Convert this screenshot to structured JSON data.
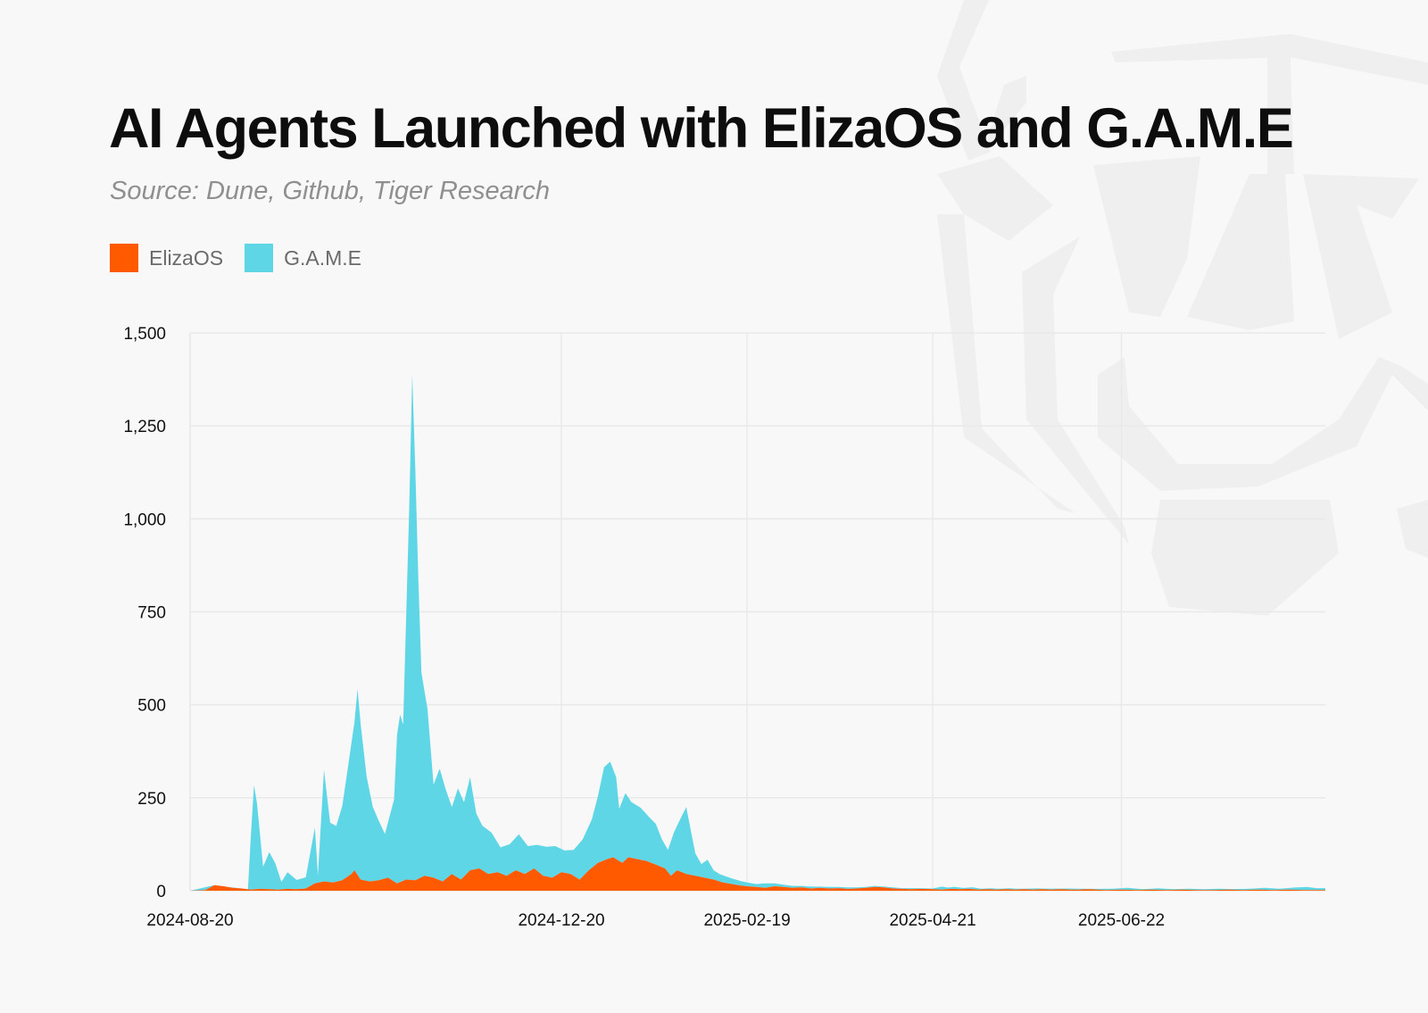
{
  "title": "AI Agents Launched with ElizaOS and G.A.M.E",
  "subtitle": "Source: Dune, Github, Tiger Research",
  "colors": {
    "background": "#f8f8f8",
    "elizaos": "#ff5a00",
    "game": "#5fd6e6",
    "grid": "#e9e9e9",
    "watermark": "#efefef"
  },
  "watermark_icon": "tiger-logo-icon",
  "chart_data": {
    "type": "area",
    "stacked": true,
    "x_start": "2024-08-20",
    "x_end": "2025-08-28",
    "xticks": [
      "2024-08-20",
      "2024-12-20",
      "2025-02-19",
      "2025-04-21",
      "2025-06-22"
    ],
    "yticks": [
      "0",
      "250",
      "500",
      "750",
      "1,000",
      "1,250",
      "1,500"
    ],
    "ylim": [
      0,
      1500
    ],
    "grid": true,
    "legend_position": "top-left",
    "series": [
      {
        "name": "ElizaOS",
        "color": "#ff5a00",
        "points": [
          [
            "2024-08-20",
            0
          ],
          [
            "2024-08-25",
            2
          ],
          [
            "2024-08-28",
            15
          ],
          [
            "2024-08-31",
            12
          ],
          [
            "2024-09-03",
            8
          ],
          [
            "2024-09-06",
            6
          ],
          [
            "2024-09-09",
            3
          ],
          [
            "2024-09-12",
            5
          ],
          [
            "2024-09-15",
            4
          ],
          [
            "2024-09-18",
            3
          ],
          [
            "2024-09-21",
            5
          ],
          [
            "2024-09-24",
            4
          ],
          [
            "2024-09-27",
            6
          ],
          [
            "2024-09-30",
            20
          ],
          [
            "2024-10-03",
            25
          ],
          [
            "2024-10-06",
            22
          ],
          [
            "2024-10-09",
            28
          ],
          [
            "2024-10-12",
            45
          ],
          [
            "2024-10-13",
            55
          ],
          [
            "2024-10-15",
            30
          ],
          [
            "2024-10-18",
            25
          ],
          [
            "2024-10-21",
            28
          ],
          [
            "2024-10-24",
            35
          ],
          [
            "2024-10-27",
            20
          ],
          [
            "2024-10-30",
            30
          ],
          [
            "2024-11-02",
            28
          ],
          [
            "2024-11-05",
            40
          ],
          [
            "2024-11-08",
            35
          ],
          [
            "2024-11-11",
            25
          ],
          [
            "2024-11-14",
            45
          ],
          [
            "2024-11-17",
            30
          ],
          [
            "2024-11-20",
            55
          ],
          [
            "2024-11-23",
            60
          ],
          [
            "2024-11-26",
            45
          ],
          [
            "2024-11-29",
            50
          ],
          [
            "2024-12-02",
            40
          ],
          [
            "2024-12-05",
            55
          ],
          [
            "2024-12-08",
            45
          ],
          [
            "2024-12-11",
            60
          ],
          [
            "2024-12-14",
            40
          ],
          [
            "2024-12-17",
            35
          ],
          [
            "2024-12-20",
            50
          ],
          [
            "2024-12-23",
            45
          ],
          [
            "2024-12-26",
            30
          ],
          [
            "2024-12-29",
            55
          ],
          [
            "2025-01-01",
            75
          ],
          [
            "2025-01-04",
            85
          ],
          [
            "2025-01-06",
            90
          ],
          [
            "2025-01-09",
            75
          ],
          [
            "2025-01-11",
            90
          ],
          [
            "2025-01-14",
            85
          ],
          [
            "2025-01-17",
            80
          ],
          [
            "2025-01-20",
            70
          ],
          [
            "2025-01-23",
            60
          ],
          [
            "2025-01-25",
            40
          ],
          [
            "2025-01-27",
            55
          ],
          [
            "2025-01-30",
            45
          ],
          [
            "2025-02-02",
            40
          ],
          [
            "2025-02-05",
            35
          ],
          [
            "2025-02-08",
            30
          ],
          [
            "2025-02-11",
            22
          ],
          [
            "2025-02-14",
            18
          ],
          [
            "2025-02-17",
            14
          ],
          [
            "2025-02-19",
            12
          ],
          [
            "2025-02-22",
            10
          ],
          [
            "2025-02-25",
            8
          ],
          [
            "2025-02-28",
            12
          ],
          [
            "2025-03-03",
            10
          ],
          [
            "2025-03-06",
            8
          ],
          [
            "2025-03-09",
            9
          ],
          [
            "2025-03-12",
            6
          ],
          [
            "2025-03-15",
            8
          ],
          [
            "2025-03-18",
            6
          ],
          [
            "2025-03-21",
            7
          ],
          [
            "2025-03-24",
            5
          ],
          [
            "2025-03-27",
            6
          ],
          [
            "2025-03-30",
            8
          ],
          [
            "2025-04-02",
            10
          ],
          [
            "2025-04-05",
            9
          ],
          [
            "2025-04-08",
            6
          ],
          [
            "2025-04-11",
            5
          ],
          [
            "2025-04-14",
            4
          ],
          [
            "2025-04-17",
            5
          ],
          [
            "2025-04-21",
            4
          ],
          [
            "2025-04-24",
            3
          ],
          [
            "2025-04-27",
            5
          ],
          [
            "2025-04-30",
            4
          ],
          [
            "2025-05-03",
            5
          ],
          [
            "2025-05-06",
            3
          ],
          [
            "2025-05-09",
            4
          ],
          [
            "2025-05-12",
            3
          ],
          [
            "2025-05-15",
            4
          ],
          [
            "2025-05-18",
            3
          ],
          [
            "2025-05-21",
            4
          ],
          [
            "2025-05-24",
            3
          ],
          [
            "2025-05-27",
            4
          ],
          [
            "2025-05-30",
            3
          ],
          [
            "2025-06-02",
            4
          ],
          [
            "2025-06-05",
            3
          ],
          [
            "2025-06-08",
            3
          ],
          [
            "2025-06-11",
            4
          ],
          [
            "2025-06-14",
            3
          ],
          [
            "2025-06-17",
            2
          ],
          [
            "2025-06-22",
            3
          ],
          [
            "2025-06-27",
            2
          ],
          [
            "2025-07-02",
            3
          ],
          [
            "2025-07-07",
            2
          ],
          [
            "2025-07-12",
            3
          ],
          [
            "2025-07-17",
            2
          ],
          [
            "2025-07-22",
            2
          ],
          [
            "2025-07-27",
            3
          ],
          [
            "2025-08-01",
            2
          ],
          [
            "2025-08-06",
            3
          ],
          [
            "2025-08-11",
            2
          ],
          [
            "2025-08-16",
            3
          ],
          [
            "2025-08-21",
            2
          ],
          [
            "2025-08-28",
            2
          ]
        ]
      },
      {
        "name": "G.A.M.E",
        "color": "#5fd6e6",
        "points": [
          [
            "2024-08-20",
            0
          ],
          [
            "2024-08-28",
            0
          ],
          [
            "2024-09-08",
            0
          ],
          [
            "2024-09-09",
            150
          ],
          [
            "2024-09-10",
            280
          ],
          [
            "2024-09-11",
            230
          ],
          [
            "2024-09-13",
            60
          ],
          [
            "2024-09-15",
            100
          ],
          [
            "2024-09-17",
            70
          ],
          [
            "2024-09-19",
            20
          ],
          [
            "2024-09-21",
            45
          ],
          [
            "2024-09-24",
            25
          ],
          [
            "2024-09-27",
            30
          ],
          [
            "2024-09-30",
            150
          ],
          [
            "2024-10-01",
            20
          ],
          [
            "2024-10-03",
            300
          ],
          [
            "2024-10-05",
            160
          ],
          [
            "2024-10-07",
            150
          ],
          [
            "2024-10-09",
            200
          ],
          [
            "2024-10-11",
            300
          ],
          [
            "2024-10-13",
            400
          ],
          [
            "2024-10-14",
            500
          ],
          [
            "2024-10-15",
            420
          ],
          [
            "2024-10-17",
            280
          ],
          [
            "2024-10-19",
            200
          ],
          [
            "2024-10-21",
            160
          ],
          [
            "2024-10-23",
            120
          ],
          [
            "2024-10-26",
            220
          ],
          [
            "2024-10-27",
            400
          ],
          [
            "2024-10-28",
            450
          ],
          [
            "2024-10-29",
            420
          ],
          [
            "2024-10-31",
            1000
          ],
          [
            "2024-11-01",
            1360
          ],
          [
            "2024-11-02",
            1100
          ],
          [
            "2024-11-03",
            800
          ],
          [
            "2024-11-04",
            550
          ],
          [
            "2024-11-06",
            450
          ],
          [
            "2024-11-08",
            250
          ],
          [
            "2024-11-10",
            300
          ],
          [
            "2024-11-12",
            240
          ],
          [
            "2024-11-14",
            180
          ],
          [
            "2024-11-16",
            240
          ],
          [
            "2024-11-18",
            200
          ],
          [
            "2024-11-20",
            250
          ],
          [
            "2024-11-22",
            150
          ],
          [
            "2024-11-24",
            120
          ],
          [
            "2024-11-27",
            110
          ],
          [
            "2024-11-30",
            70
          ],
          [
            "2024-12-03",
            80
          ],
          [
            "2024-12-06",
            100
          ],
          [
            "2024-12-09",
            70
          ],
          [
            "2024-12-12",
            70
          ],
          [
            "2024-12-15",
            80
          ],
          [
            "2024-12-18",
            80
          ],
          [
            "2024-12-21",
            60
          ],
          [
            "2024-12-24",
            70
          ],
          [
            "2024-12-27",
            100
          ],
          [
            "2024-12-30",
            130
          ],
          [
            "2025-01-01",
            180
          ],
          [
            "2025-01-03",
            250
          ],
          [
            "2025-01-05",
            260
          ],
          [
            "2025-01-07",
            220
          ],
          [
            "2025-01-08",
            140
          ],
          [
            "2025-01-10",
            180
          ],
          [
            "2025-01-12",
            150
          ],
          [
            "2025-01-15",
            140
          ],
          [
            "2025-01-18",
            120
          ],
          [
            "2025-01-20",
            110
          ],
          [
            "2025-01-22",
            75
          ],
          [
            "2025-01-24",
            60
          ],
          [
            "2025-01-26",
            110
          ],
          [
            "2025-01-28",
            140
          ],
          [
            "2025-01-30",
            180
          ],
          [
            "2025-02-02",
            60
          ],
          [
            "2025-02-04",
            35
          ],
          [
            "2025-02-06",
            50
          ],
          [
            "2025-02-08",
            25
          ],
          [
            "2025-02-10",
            20
          ],
          [
            "2025-02-12",
            18
          ],
          [
            "2025-02-14",
            15
          ],
          [
            "2025-02-17",
            12
          ],
          [
            "2025-02-19",
            10
          ],
          [
            "2025-02-22",
            8
          ],
          [
            "2025-02-25",
            12
          ],
          [
            "2025-02-28",
            8
          ],
          [
            "2025-03-03",
            6
          ],
          [
            "2025-03-06",
            5
          ],
          [
            "2025-03-09",
            4
          ],
          [
            "2025-03-12",
            5
          ],
          [
            "2025-03-15",
            3
          ],
          [
            "2025-03-18",
            4
          ],
          [
            "2025-03-21",
            3
          ],
          [
            "2025-03-24",
            4
          ],
          [
            "2025-03-27",
            3
          ],
          [
            "2025-03-30",
            2
          ],
          [
            "2025-04-02",
            3
          ],
          [
            "2025-04-05",
            2
          ],
          [
            "2025-04-08",
            3
          ],
          [
            "2025-04-11",
            2
          ],
          [
            "2025-04-14",
            3
          ],
          [
            "2025-04-17",
            2
          ],
          [
            "2025-04-21",
            2
          ],
          [
            "2025-04-24",
            8
          ],
          [
            "2025-04-26",
            4
          ],
          [
            "2025-04-28",
            6
          ],
          [
            "2025-05-01",
            3
          ],
          [
            "2025-05-04",
            5
          ],
          [
            "2025-05-07",
            2
          ],
          [
            "2025-05-10",
            3
          ],
          [
            "2025-05-13",
            2
          ],
          [
            "2025-05-16",
            3
          ],
          [
            "2025-05-19",
            2
          ],
          [
            "2025-05-22",
            2
          ],
          [
            "2025-05-25",
            3
          ],
          [
            "2025-05-28",
            2
          ],
          [
            "2025-06-01",
            2
          ],
          [
            "2025-06-05",
            3
          ],
          [
            "2025-06-09",
            2
          ],
          [
            "2025-06-14",
            2
          ],
          [
            "2025-06-19",
            3
          ],
          [
            "2025-06-24",
            5
          ],
          [
            "2025-06-29",
            2
          ],
          [
            "2025-07-04",
            4
          ],
          [
            "2025-07-09",
            2
          ],
          [
            "2025-07-14",
            3
          ],
          [
            "2025-07-19",
            2
          ],
          [
            "2025-07-24",
            3
          ],
          [
            "2025-07-29",
            2
          ],
          [
            "2025-08-03",
            3
          ],
          [
            "2025-08-08",
            5
          ],
          [
            "2025-08-13",
            3
          ],
          [
            "2025-08-18",
            6
          ],
          [
            "2025-08-22",
            8
          ],
          [
            "2025-08-25",
            5
          ],
          [
            "2025-08-28",
            5
          ]
        ]
      }
    ]
  }
}
